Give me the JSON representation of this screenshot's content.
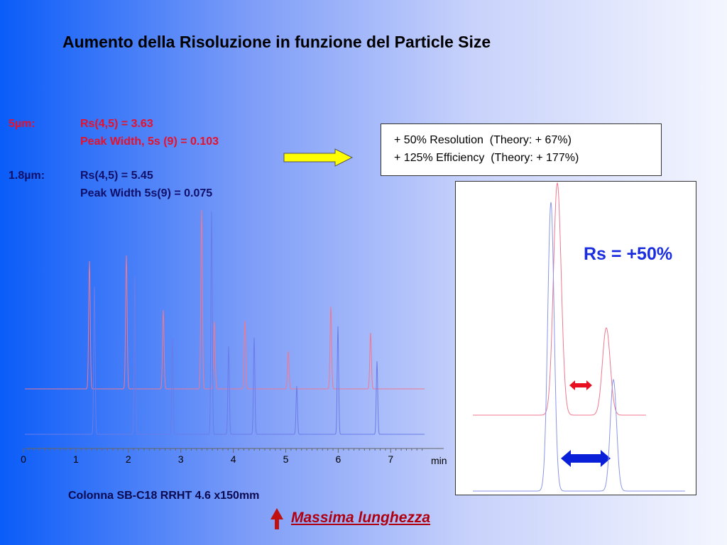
{
  "title": "Aumento della Risoluzione in funzione del Particle Size",
  "stats": [
    {
      "label": "5µm:",
      "lines": [
        "Rs(4,5) = 3.63",
        "Peak Width, 5s (9) = 0.103"
      ]
    },
    {
      "label": "1.8µm:",
      "lines": [
        "Rs(4,5) = 5.45",
        "Peak Width 5s(9) = 0.075"
      ]
    }
  ],
  "gain_box": [
    "+ 50% Resolution  (Theory: + 67%)",
    "+ 125% Efficiency  (Theory: + 177%)"
  ],
  "axis": {
    "ticks": [
      "0",
      "1",
      "2",
      "3",
      "4",
      "5",
      "6",
      "7"
    ],
    "unit": "min"
  },
  "inset_label": "Rs = +50%",
  "column": "Colonna SB-C18 RRHT 4.6 x150mm",
  "note": "Massima lunghezza"
}
